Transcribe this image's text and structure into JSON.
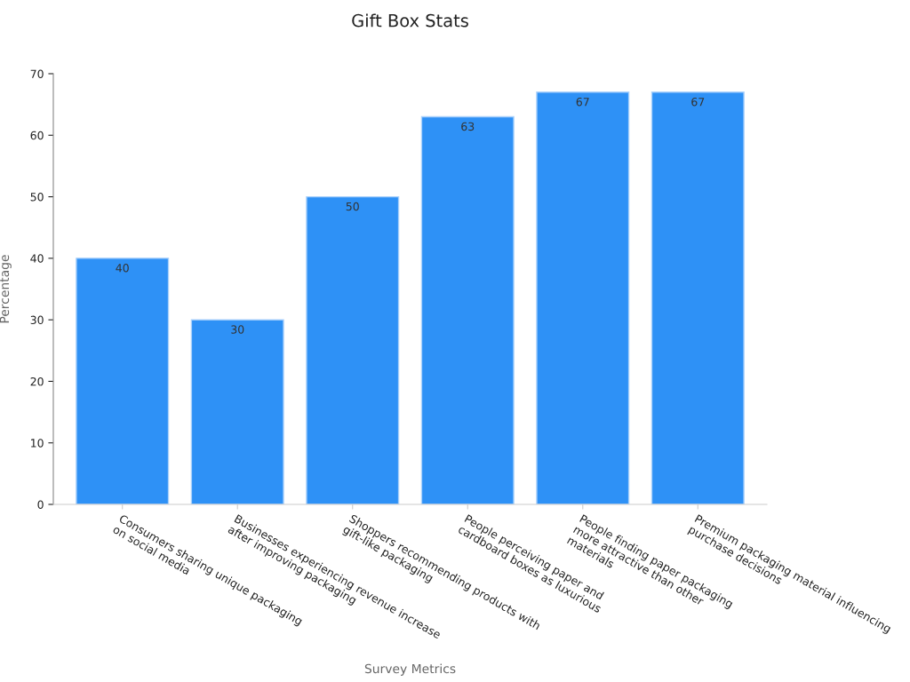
{
  "chart_data": {
    "type": "bar",
    "title": "Gift Box Stats",
    "xlabel": "Survey Metrics",
    "ylabel": "Percentage",
    "categories": [
      "Consumers sharing unique packaging\non social media",
      "Businesses experiencing revenue increase\nafter improving packaging",
      "Shoppers recommending products with\ngift-like packaging",
      "People perceiving paper and\ncardboard boxes as luxurious",
      "People finding paper packaging\nmore attractive than other\nmaterials",
      "Premium packaging material influencing\npurchase decisions"
    ],
    "values": [
      40,
      30,
      50,
      63,
      67,
      67
    ],
    "color": "#2e91f6",
    "ylim": [
      0,
      70
    ],
    "yticks": [
      0,
      10,
      20,
      30,
      40,
      50,
      60,
      70
    ],
    "data_labels": true,
    "grid": false,
    "legend": false
  }
}
